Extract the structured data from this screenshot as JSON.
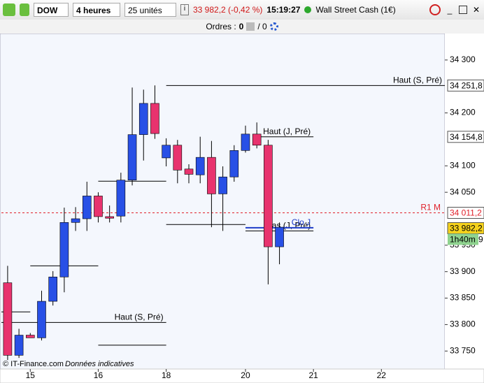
{
  "toolbar": {
    "symbol": "DOW",
    "period": "4 heures",
    "units": "25 unités",
    "quote": "33 982,2 (-0,42 %)",
    "time": "15:19:27",
    "instrument": "Wall Street Cash (1€)"
  },
  "orders": {
    "label": "Ordres :",
    "count": "0",
    "total": "/ 0"
  },
  "footer": {
    "copyright": "© IT-Finance.com",
    "note": "Données indicatives"
  },
  "countdown": {
    "label": "1h40m",
    "suffix": "9"
  },
  "chart_data": {
    "type": "candlestick",
    "x": [
      0,
      1,
      2,
      3,
      4,
      5,
      6,
      7,
      8,
      9,
      10,
      11,
      12,
      13,
      14,
      15,
      16,
      17,
      18,
      19,
      20,
      21,
      22,
      23,
      24
    ],
    "open": [
      33879,
      33742,
      33780,
      33775,
      33844,
      33890,
      33993,
      34000,
      34043,
      34004,
      34005,
      34073,
      34159,
      34218,
      34115,
      34139,
      34094,
      34083,
      34116,
      34047,
      34079,
      34129,
      34160,
      34139,
      33947
    ],
    "high": [
      33911,
      33792,
      33784,
      33864,
      33901,
      34021,
      34022,
      34070,
      34050,
      34025,
      34087,
      34248,
      34244,
      34252,
      34152,
      34149,
      34103,
      34155,
      34147,
      34099,
      34139,
      34176,
      34182,
      34149,
      33993
    ],
    "low": [
      33733,
      33737,
      33775,
      33770,
      33836,
      33861,
      33977,
      33977,
      33993,
      33993,
      33993,
      34063,
      34110,
      34151,
      34099,
      34067,
      34067,
      34067,
      33984,
      33977,
      34070,
      34125,
      34133,
      33876,
      33914
    ],
    "close": [
      33742,
      33780,
      33775,
      33844,
      33890,
      33993,
      34000,
      34043,
      34004,
      34001,
      34073,
      34159,
      34218,
      34161,
      34139,
      34092,
      34084,
      34116,
      34047,
      34079,
      34129,
      34160,
      34139,
      33947,
      33984
    ],
    "up_color": "#2850e6",
    "down_color": "#e8336e",
    "xlim": [
      -0.55,
      38.6
    ],
    "xticks": [
      {
        "value": 2,
        "label": "15"
      },
      {
        "value": 8,
        "label": "16"
      },
      {
        "value": 14,
        "label": "18"
      },
      {
        "value": 21,
        "label": "20"
      },
      {
        "value": 27,
        "label": "21"
      },
      {
        "value": 33,
        "label": "22"
      }
    ],
    "ylim": [
      33716,
      34350
    ],
    "yticks": [
      {
        "value": 34300,
        "label": "34 300"
      },
      {
        "value": 34200,
        "label": "34 200"
      },
      {
        "value": 34100,
        "label": "34 100"
      },
      {
        "value": 34050,
        "label": "34 050"
      },
      {
        "value": 33950,
        "label": "33 950"
      },
      {
        "value": 33900,
        "label": "33 900"
      },
      {
        "value": 33850,
        "label": "33 850"
      },
      {
        "value": 33800,
        "label": "33 800"
      },
      {
        "value": 33750,
        "label": "33 750"
      }
    ],
    "levels": [
      {
        "name": "Haut (S, Pré)",
        "value": 34251.8,
        "x": [
          14,
          38.6
        ],
        "color": "#000000"
      },
      {
        "name": "Haut (S, Pré)",
        "value": 33804,
        "x": [
          -0.55,
          14
        ],
        "color": "#000000"
      },
      {
        "value": 34071,
        "x": [
          8,
          14
        ],
        "color": "#000000"
      },
      {
        "value": 33911,
        "x": [
          2,
          8
        ],
        "color": "#000000"
      },
      {
        "value": 33824,
        "x": [
          -0.55,
          2
        ],
        "color": "#000000"
      },
      {
        "value": 33761,
        "x": [
          8,
          14
        ],
        "color": "#000000"
      },
      {
        "name": "Haut (J, Pré)",
        "value": 34154.8,
        "x": [
          22,
          27
        ],
        "color": "#000000"
      },
      {
        "value": 33989,
        "x": [
          14,
          21
        ],
        "color": "#000000"
      },
      {
        "name": "Bas (J, Pré)",
        "value": 33977,
        "x": [
          21,
          27
        ],
        "color": "#000000"
      },
      {
        "name": "Clo J",
        "value": 33983,
        "x": [
          21,
          27
        ],
        "color": "#1e3cc8"
      },
      {
        "name": "R1 M",
        "value": 34011.2,
        "x": [
          -0.55,
          38.6
        ],
        "color": "#e0202a",
        "dashed": true
      }
    ],
    "price_tags": [
      {
        "value": 34251.8,
        "label": "34 251,8",
        "color": "#000000",
        "bg": "#ffffff"
      },
      {
        "value": 34154.8,
        "label": "34 154,8",
        "color": "#000000",
        "bg": "#ffffff"
      },
      {
        "value": 34011.2,
        "label": "34 011,2",
        "color": "#e0202a",
        "bg": "#ffffff"
      },
      {
        "value": 33982.2,
        "label": "33 982,2",
        "color": "#000000",
        "bg": "#f6d21c"
      }
    ]
  }
}
